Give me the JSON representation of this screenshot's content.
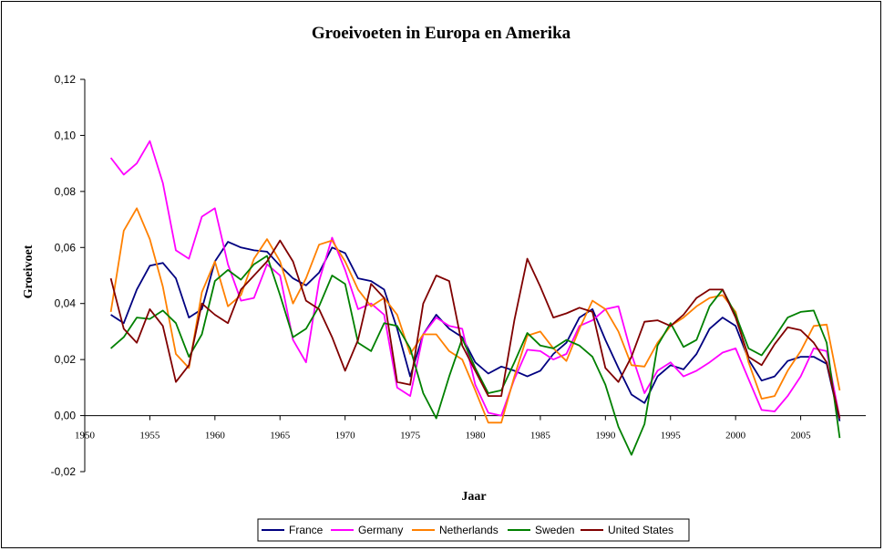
{
  "chart_data": {
    "type": "line",
    "title": "Groeivoeten in Europa en Amerika",
    "xlabel": "Jaar",
    "ylabel": "Groeivoet",
    "xlim": [
      1950,
      2010
    ],
    "ylim": [
      -0.02,
      0.12
    ],
    "x_ticks": [
      1950,
      1955,
      1960,
      1965,
      1970,
      1975,
      1980,
      1985,
      1990,
      1995,
      2000,
      2005
    ],
    "x_tick_labels": [
      "1950",
      "1955",
      "1960",
      "1965",
      "1970",
      "1975",
      "1980",
      "1985",
      "1990",
      "1995",
      "2000",
      "2005"
    ],
    "y_ticks": [
      -0.02,
      0,
      0.02,
      0.04,
      0.06,
      0.08,
      0.1,
      0.12
    ],
    "y_tick_labels": [
      "-0,02",
      "0,00",
      "0,02",
      "0,04",
      "0,06",
      "0,08",
      "0,10",
      "0,12"
    ],
    "legend_position": "bottom",
    "x": [
      1952,
      1953,
      1954,
      1955,
      1956,
      1957,
      1958,
      1959,
      1960,
      1961,
      1962,
      1963,
      1964,
      1965,
      1966,
      1967,
      1968,
      1969,
      1970,
      1971,
      1972,
      1973,
      1974,
      1975,
      1976,
      1977,
      1978,
      1979,
      1980,
      1981,
      1982,
      1983,
      1984,
      1985,
      1986,
      1987,
      1988,
      1989,
      1990,
      1991,
      1992,
      1993,
      1994,
      1995,
      1996,
      1997,
      1998,
      1999,
      2000,
      2001,
      2002,
      2003,
      2004,
      2005,
      2006,
      2007,
      2008
    ],
    "series": [
      {
        "name": "France",
        "color": "#000080",
        "values": [
          0.036,
          0.033,
          0.045,
          0.0535,
          0.0545,
          0.049,
          0.035,
          0.038,
          0.055,
          0.062,
          0.06,
          0.059,
          0.0585,
          0.0535,
          0.049,
          0.0465,
          0.051,
          0.06,
          0.058,
          0.049,
          0.048,
          0.045,
          0.031,
          0.014,
          0.029,
          0.036,
          0.031,
          0.028,
          0.019,
          0.015,
          0.0175,
          0.016,
          0.014,
          0.016,
          0.022,
          0.026,
          0.035,
          0.038,
          0.027,
          0.017,
          0.0075,
          0.0045,
          0.014,
          0.018,
          0.0165,
          0.022,
          0.031,
          0.035,
          0.032,
          0.02,
          0.0125,
          0.014,
          0.0195,
          0.021,
          0.021,
          0.0185,
          -0.002
        ]
      },
      {
        "name": "Germany",
        "color": "#ff00ff",
        "values": [
          0.092,
          0.086,
          0.09,
          0.098,
          0.083,
          0.059,
          0.056,
          0.071,
          0.074,
          0.054,
          0.041,
          0.042,
          0.054,
          0.05,
          0.027,
          0.019,
          0.048,
          0.0635,
          0.052,
          0.038,
          0.04,
          0.036,
          0.01,
          0.007,
          0.029,
          0.035,
          0.032,
          0.031,
          0.011,
          0.001,
          0.0,
          0.013,
          0.0235,
          0.023,
          0.02,
          0.022,
          0.032,
          0.034,
          0.038,
          0.039,
          0.022,
          0.008,
          0.016,
          0.019,
          0.014,
          0.016,
          0.019,
          0.0225,
          0.024,
          0.013,
          0.002,
          0.0015,
          0.007,
          0.014,
          0.024,
          0.023,
          -0.001
        ]
      },
      {
        "name": "Netherlands",
        "color": "#ff8000",
        "values": [
          0.037,
          0.066,
          0.074,
          0.063,
          0.046,
          0.022,
          0.017,
          0.044,
          0.055,
          0.039,
          0.043,
          0.056,
          0.063,
          0.055,
          0.04,
          0.049,
          0.061,
          0.0625,
          0.055,
          0.045,
          0.039,
          0.042,
          0.036,
          0.022,
          0.029,
          0.029,
          0.023,
          0.02,
          0.009,
          -0.0025,
          -0.0025,
          0.014,
          0.0285,
          0.03,
          0.024,
          0.0195,
          0.031,
          0.041,
          0.038,
          0.03,
          0.018,
          0.0175,
          0.026,
          0.032,
          0.035,
          0.039,
          0.042,
          0.043,
          0.037,
          0.019,
          0.006,
          0.007,
          0.016,
          0.023,
          0.032,
          0.0325,
          0.009
        ]
      },
      {
        "name": "Sweden",
        "color": "#008000",
        "values": [
          0.024,
          0.028,
          0.035,
          0.0345,
          0.0375,
          0.033,
          0.021,
          0.029,
          0.048,
          0.052,
          0.0485,
          0.054,
          0.057,
          0.043,
          0.028,
          0.031,
          0.039,
          0.05,
          0.047,
          0.026,
          0.023,
          0.033,
          0.032,
          0.024,
          0.008,
          -0.001,
          0.014,
          0.0275,
          0.017,
          0.008,
          0.009,
          0.019,
          0.0295,
          0.025,
          0.024,
          0.027,
          0.025,
          0.021,
          0.011,
          -0.004,
          -0.014,
          -0.003,
          0.025,
          0.033,
          0.0245,
          0.027,
          0.039,
          0.045,
          0.036,
          0.024,
          0.0215,
          0.028,
          0.035,
          0.037,
          0.0375,
          0.026,
          -0.008
        ]
      },
      {
        "name": "United States",
        "color": "#800000",
        "values": [
          0.049,
          0.031,
          0.026,
          0.038,
          0.032,
          0.012,
          0.018,
          0.04,
          0.036,
          0.033,
          0.045,
          0.05,
          0.055,
          0.0625,
          0.055,
          0.041,
          0.038,
          0.028,
          0.016,
          0.027,
          0.047,
          0.042,
          0.012,
          0.011,
          0.04,
          0.05,
          0.048,
          0.025,
          0.016,
          0.007,
          0.007,
          0.034,
          0.056,
          0.046,
          0.035,
          0.0365,
          0.0385,
          0.037,
          0.017,
          0.012,
          0.021,
          0.0335,
          0.034,
          0.032,
          0.036,
          0.042,
          0.045,
          0.045,
          0.035,
          0.021,
          0.018,
          0.0255,
          0.0315,
          0.0305,
          0.026,
          0.019,
          -0.001
        ]
      }
    ]
  }
}
